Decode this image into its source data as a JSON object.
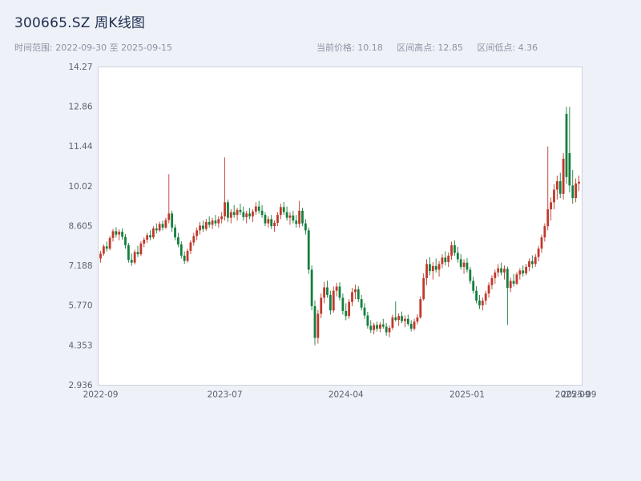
{
  "header": {
    "title": "300665.SZ 周K线图",
    "time_range": "时间范围: 2022-09-30 至 2025-09-15",
    "current_price": "当前价格: 10.18",
    "range_high": "区间高点: 12.85",
    "range_low": "区间低点: 4.36"
  },
  "chart_data": {
    "type": "candlestick",
    "title": "300665.SZ 周K线图",
    "interval": "weekly",
    "start_date": "2022-09-30",
    "end_date": "2025-09-15",
    "ylim": [
      2.936,
      14.27
    ],
    "grid": false,
    "up_color": "#c0392b",
    "down_color": "#157f3d",
    "plot_bg": "#ffffff",
    "border_color": "#cdd2dd",
    "axis_text_color": "#5a6170",
    "y_ticks": [
      {
        "value": 2.936,
        "label": "2.936"
      },
      {
        "value": 4.353,
        "label": "4.353"
      },
      {
        "value": 5.77,
        "label": "5.770"
      },
      {
        "value": 7.188,
        "label": "7.188"
      },
      {
        "value": 8.605,
        "label": "8.605"
      },
      {
        "value": 10.02,
        "label": "10.02"
      },
      {
        "value": 11.44,
        "label": "11.44"
      },
      {
        "value": 12.86,
        "label": "12.86"
      },
      {
        "value": 14.27,
        "label": "14.27"
      }
    ],
    "x_ticks": [
      {
        "index": 0,
        "label": "2022-09"
      },
      {
        "index": 40,
        "label": "2023-07"
      },
      {
        "index": 79,
        "label": "2024-04"
      },
      {
        "index": 118,
        "label": "2025-01"
      },
      {
        "index": 152,
        "label": "2025-09"
      },
      {
        "index": 154,
        "label": "2025-09"
      }
    ],
    "candles": [
      [
        7.45,
        7.72,
        7.3,
        7.62
      ],
      [
        7.62,
        7.95,
        7.55,
        7.88
      ],
      [
        7.88,
        8.05,
        7.7,
        7.8
      ],
      [
        7.8,
        8.25,
        7.74,
        8.18
      ],
      [
        8.18,
        8.5,
        8.05,
        8.42
      ],
      [
        8.42,
        8.56,
        8.2,
        8.3
      ],
      [
        8.3,
        8.48,
        8.1,
        8.4
      ],
      [
        8.4,
        8.52,
        8.12,
        8.22
      ],
      [
        8.22,
        8.32,
        7.8,
        7.92
      ],
      [
        7.92,
        8.0,
        7.3,
        7.4
      ],
      [
        7.4,
        7.62,
        7.18,
        7.3
      ],
      [
        7.3,
        7.76,
        7.24,
        7.68
      ],
      [
        7.68,
        7.9,
        7.5,
        7.6
      ],
      [
        7.6,
        8.06,
        7.54,
        7.98
      ],
      [
        7.98,
        8.2,
        7.85,
        8.12
      ],
      [
        8.12,
        8.36,
        8.0,
        8.28
      ],
      [
        8.28,
        8.45,
        8.1,
        8.2
      ],
      [
        8.2,
        8.6,
        8.14,
        8.52
      ],
      [
        8.52,
        8.7,
        8.34,
        8.45
      ],
      [
        8.45,
        8.76,
        8.4,
        8.68
      ],
      [
        8.68,
        8.8,
        8.45,
        8.55
      ],
      [
        8.55,
        8.9,
        8.5,
        8.82
      ],
      [
        8.82,
        10.45,
        8.7,
        9.05
      ],
      [
        9.05,
        9.15,
        8.4,
        8.55
      ],
      [
        8.55,
        8.66,
        8.1,
        8.2
      ],
      [
        8.2,
        8.36,
        7.85,
        7.95
      ],
      [
        7.95,
        8.06,
        7.45,
        7.55
      ],
      [
        7.55,
        7.7,
        7.26,
        7.36
      ],
      [
        7.36,
        7.8,
        7.3,
        7.72
      ],
      [
        7.72,
        8.1,
        7.6,
        8.02
      ],
      [
        8.02,
        8.36,
        7.9,
        8.25
      ],
      [
        8.25,
        8.55,
        8.1,
        8.45
      ],
      [
        8.45,
        8.75,
        8.3,
        8.62
      ],
      [
        8.62,
        8.8,
        8.4,
        8.5
      ],
      [
        8.5,
        8.86,
        8.44,
        8.75
      ],
      [
        8.75,
        8.95,
        8.55,
        8.65
      ],
      [
        8.65,
        8.9,
        8.5,
        8.8
      ],
      [
        8.8,
        9.0,
        8.6,
        8.7
      ],
      [
        8.7,
        8.95,
        8.55,
        8.85
      ],
      [
        8.85,
        9.1,
        8.7,
        8.95
      ],
      [
        8.95,
        11.05,
        8.8,
        9.45
      ],
      [
        9.45,
        9.55,
        8.75,
        8.9
      ],
      [
        8.9,
        9.2,
        8.7,
        9.1
      ],
      [
        9.1,
        9.35,
        8.9,
        9.0
      ],
      [
        9.0,
        9.25,
        8.8,
        9.18
      ],
      [
        9.18,
        9.4,
        9.0,
        9.1
      ],
      [
        9.1,
        9.3,
        8.8,
        8.92
      ],
      [
        8.92,
        9.15,
        8.7,
        9.05
      ],
      [
        9.05,
        9.25,
        8.85,
        8.95
      ],
      [
        8.95,
        9.2,
        8.75,
        9.12
      ],
      [
        9.12,
        9.45,
        9.0,
        9.3
      ],
      [
        9.3,
        9.5,
        9.05,
        9.15
      ],
      [
        9.15,
        9.35,
        8.9,
        9.0
      ],
      [
        9.0,
        9.1,
        8.6,
        8.7
      ],
      [
        8.7,
        8.96,
        8.55,
        8.85
      ],
      [
        8.85,
        9.0,
        8.5,
        8.6
      ],
      [
        8.6,
        8.8,
        8.4,
        8.72
      ],
      [
        8.72,
        9.1,
        8.6,
        9.0
      ],
      [
        9.0,
        9.4,
        8.85,
        9.28
      ],
      [
        9.28,
        9.46,
        9.0,
        9.1
      ],
      [
        9.1,
        9.3,
        8.8,
        8.9
      ],
      [
        8.9,
        9.1,
        8.65,
        8.98
      ],
      [
        8.98,
        9.15,
        8.7,
        8.8
      ],
      [
        8.8,
        9.0,
        8.55,
        8.68
      ],
      [
        8.68,
        9.5,
        8.55,
        9.15
      ],
      [
        9.15,
        9.25,
        8.6,
        8.7
      ],
      [
        8.7,
        8.85,
        8.3,
        8.45
      ],
      [
        8.45,
        8.55,
        6.9,
        7.05
      ],
      [
        7.05,
        7.2,
        5.6,
        5.75
      ],
      [
        5.75,
        5.95,
        4.36,
        4.62
      ],
      [
        4.62,
        5.62,
        4.42,
        5.48
      ],
      [
        5.48,
        6.2,
        5.32,
        6.05
      ],
      [
        6.05,
        6.62,
        5.85,
        6.42
      ],
      [
        6.42,
        6.66,
        6.05,
        6.15
      ],
      [
        6.15,
        6.3,
        5.45,
        5.6
      ],
      [
        5.6,
        6.45,
        5.52,
        6.3
      ],
      [
        6.3,
        6.58,
        6.1,
        6.45
      ],
      [
        6.45,
        6.6,
        5.95,
        6.05
      ],
      [
        6.05,
        6.2,
        5.45,
        5.58
      ],
      [
        5.58,
        5.85,
        5.25,
        5.4
      ],
      [
        5.4,
        6.0,
        5.3,
        5.9
      ],
      [
        5.9,
        6.4,
        5.75,
        6.25
      ],
      [
        6.25,
        6.52,
        6.0,
        6.35
      ],
      [
        6.35,
        6.46,
        5.9,
        6.0
      ],
      [
        6.0,
        6.15,
        5.6,
        5.7
      ],
      [
        5.7,
        5.86,
        5.3,
        5.42
      ],
      [
        5.42,
        5.55,
        4.95,
        5.05
      ],
      [
        5.05,
        5.25,
        4.8,
        4.9
      ],
      [
        4.9,
        5.16,
        4.75,
        5.08
      ],
      [
        5.08,
        5.2,
        4.85,
        4.95
      ],
      [
        4.95,
        5.18,
        4.82,
        5.1
      ],
      [
        5.1,
        5.3,
        4.95,
        5.02
      ],
      [
        5.02,
        5.15,
        4.7,
        4.82
      ],
      [
        4.82,
        5.06,
        4.65,
        4.98
      ],
      [
        4.98,
        5.45,
        4.9,
        5.35
      ],
      [
        5.35,
        5.92,
        5.2,
        5.26
      ],
      [
        5.26,
        5.5,
        5.05,
        5.4
      ],
      [
        5.4,
        5.56,
        5.15,
        5.22
      ],
      [
        5.22,
        5.42,
        5.0,
        5.3
      ],
      [
        5.3,
        5.45,
        5.05,
        5.12
      ],
      [
        5.12,
        5.25,
        4.85,
        4.95
      ],
      [
        4.95,
        5.3,
        4.88,
        5.2
      ],
      [
        5.2,
        5.46,
        5.1,
        5.35
      ],
      [
        5.35,
        6.1,
        5.3,
        6.0
      ],
      [
        6.0,
        6.92,
        5.95,
        6.75
      ],
      [
        6.75,
        7.42,
        6.5,
        7.25
      ],
      [
        7.25,
        7.5,
        6.85,
        7.0
      ],
      [
        7.0,
        7.32,
        6.7,
        7.18
      ],
      [
        7.18,
        7.45,
        6.95,
        7.05
      ],
      [
        7.05,
        7.36,
        6.8,
        7.25
      ],
      [
        7.25,
        7.6,
        7.1,
        7.48
      ],
      [
        7.48,
        7.7,
        7.2,
        7.32
      ],
      [
        7.32,
        7.66,
        7.15,
        7.55
      ],
      [
        7.55,
        8.05,
        7.4,
        7.92
      ],
      [
        7.92,
        8.1,
        7.55,
        7.65
      ],
      [
        7.65,
        7.86,
        7.3,
        7.42
      ],
      [
        7.42,
        7.6,
        7.05,
        7.15
      ],
      [
        7.15,
        7.42,
        6.9,
        7.3
      ],
      [
        7.3,
        7.46,
        6.95,
        7.05
      ],
      [
        7.05,
        7.15,
        6.55,
        6.65
      ],
      [
        6.65,
        6.8,
        6.2,
        6.3
      ],
      [
        6.3,
        6.46,
        5.85,
        5.95
      ],
      [
        5.95,
        6.15,
        5.65,
        5.78
      ],
      [
        5.78,
        6.06,
        5.6,
        5.95
      ],
      [
        5.95,
        6.3,
        5.8,
        6.2
      ],
      [
        6.2,
        6.6,
        6.05,
        6.5
      ],
      [
        6.5,
        6.85,
        6.35,
        6.75
      ],
      [
        6.75,
        7.05,
        6.55,
        6.95
      ],
      [
        6.95,
        7.25,
        6.8,
        7.1
      ],
      [
        7.1,
        7.3,
        6.85,
        6.95
      ],
      [
        6.95,
        7.2,
        6.7,
        7.08
      ],
      [
        7.08,
        7.16,
        5.08,
        6.4
      ],
      [
        6.4,
        6.76,
        6.25,
        6.65
      ],
      [
        6.65,
        6.9,
        6.45,
        6.55
      ],
      [
        6.55,
        6.96,
        6.5,
        6.88
      ],
      [
        6.88,
        7.1,
        6.7,
        7.02
      ],
      [
        7.02,
        7.2,
        6.8,
        6.92
      ],
      [
        6.92,
        7.26,
        6.85,
        7.15
      ],
      [
        7.15,
        7.45,
        7.0,
        7.35
      ],
      [
        7.35,
        7.56,
        7.1,
        7.25
      ],
      [
        7.25,
        7.6,
        7.15,
        7.5
      ],
      [
        7.5,
        7.9,
        7.35,
        7.8
      ],
      [
        7.8,
        8.3,
        7.65,
        8.2
      ],
      [
        8.2,
        8.7,
        8.05,
        8.6
      ],
      [
        8.6,
        11.44,
        8.45,
        9.2
      ],
      [
        9.2,
        9.62,
        8.8,
        9.45
      ],
      [
        9.45,
        10.1,
        9.2,
        9.9
      ],
      [
        9.9,
        10.4,
        9.55,
        10.2
      ],
      [
        10.2,
        10.5,
        9.6,
        9.75
      ],
      [
        9.75,
        11.2,
        9.55,
        11.0
      ],
      [
        12.6,
        12.85,
        10.1,
        10.35
      ],
      [
        11.2,
        12.85,
        9.8,
        10.05
      ],
      [
        10.05,
        10.6,
        9.4,
        9.6
      ],
      [
        9.6,
        10.3,
        9.45,
        10.12
      ],
      [
        10.12,
        10.4,
        9.85,
        10.18
      ]
    ]
  }
}
